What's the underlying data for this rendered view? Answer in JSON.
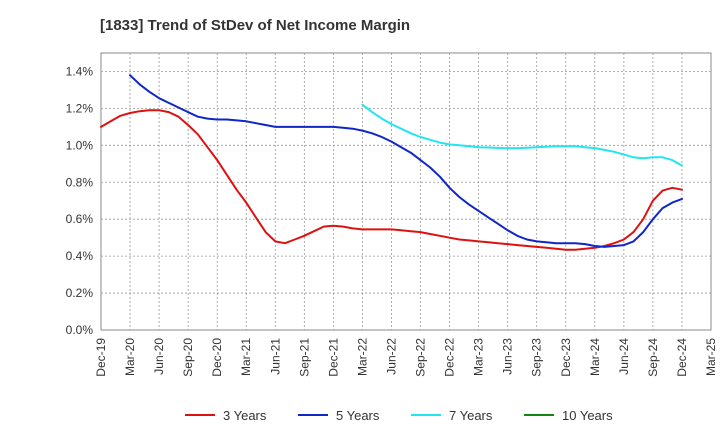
{
  "chart_data": {
    "type": "line",
    "title": "[1833]  Trend of StDev of Net Income Margin",
    "xlabel": "",
    "ylabel": "",
    "x_ticks": [
      "Dec-19",
      "Mar-20",
      "Jun-20",
      "Sep-20",
      "Dec-20",
      "Mar-21",
      "Jun-21",
      "Sep-21",
      "Dec-21",
      "Mar-22",
      "Jun-22",
      "Sep-22",
      "Dec-22",
      "Mar-23",
      "Jun-23",
      "Sep-23",
      "Dec-23",
      "Mar-24",
      "Jun-24",
      "Sep-24",
      "Dec-24",
      "Mar-25"
    ],
    "y_ticks": [
      "0.0%",
      "0.2%",
      "0.4%",
      "0.6%",
      "0.8%",
      "1.0%",
      "1.2%",
      "1.4%"
    ],
    "ylim": [
      0,
      1.5
    ],
    "grid": true,
    "legend_position": "bottom",
    "series": [
      {
        "name": "3 Years",
        "color": "#dd1111",
        "points": [
          [
            "Dec-19",
            1.1
          ],
          [
            "Jan-20",
            1.13
          ],
          [
            "Feb-20",
            1.16
          ],
          [
            "Mar-20",
            1.175
          ],
          [
            "Apr-20",
            1.185
          ],
          [
            "May-20",
            1.19
          ],
          [
            "Jun-20",
            1.19
          ],
          [
            "Jul-20",
            1.18
          ],
          [
            "Aug-20",
            1.155
          ],
          [
            "Sep-20",
            1.11
          ],
          [
            "Oct-20",
            1.06
          ],
          [
            "Nov-20",
            0.99
          ],
          [
            "Dec-20",
            0.92
          ],
          [
            "Jan-21",
            0.84
          ],
          [
            "Feb-21",
            0.76
          ],
          [
            "Mar-21",
            0.69
          ],
          [
            "Apr-21",
            0.61
          ],
          [
            "May-21",
            0.53
          ],
          [
            "Jun-21",
            0.48
          ],
          [
            "Jul-21",
            0.47
          ],
          [
            "Aug-21",
            0.49
          ],
          [
            "Sep-21",
            0.51
          ],
          [
            "Oct-21",
            0.535
          ],
          [
            "Nov-21",
            0.56
          ],
          [
            "Dec-21",
            0.565
          ],
          [
            "Jan-22",
            0.56
          ],
          [
            "Feb-22",
            0.55
          ],
          [
            "Mar-22",
            0.545
          ],
          [
            "Apr-22",
            0.545
          ],
          [
            "May-22",
            0.545
          ],
          [
            "Jun-22",
            0.545
          ],
          [
            "Jul-22",
            0.54
          ],
          [
            "Aug-22",
            0.535
          ],
          [
            "Sep-22",
            0.53
          ],
          [
            "Oct-22",
            0.52
          ],
          [
            "Nov-22",
            0.51
          ],
          [
            "Dec-22",
            0.5
          ],
          [
            "Jan-23",
            0.49
          ],
          [
            "Feb-23",
            0.485
          ],
          [
            "Mar-23",
            0.48
          ],
          [
            "Apr-23",
            0.475
          ],
          [
            "May-23",
            0.47
          ],
          [
            "Jun-23",
            0.465
          ],
          [
            "Jul-23",
            0.46
          ],
          [
            "Aug-23",
            0.455
          ],
          [
            "Sep-23",
            0.45
          ],
          [
            "Oct-23",
            0.445
          ],
          [
            "Nov-23",
            0.44
          ],
          [
            "Dec-23",
            0.435
          ],
          [
            "Jan-24",
            0.435
          ],
          [
            "Feb-24",
            0.44
          ],
          [
            "Mar-24",
            0.445
          ],
          [
            "Apr-24",
            0.455
          ],
          [
            "May-24",
            0.47
          ],
          [
            "Jun-24",
            0.49
          ],
          [
            "Jul-24",
            0.53
          ],
          [
            "Aug-24",
            0.6
          ],
          [
            "Sep-24",
            0.7
          ],
          [
            "Oct-24",
            0.755
          ],
          [
            "Nov-24",
            0.77
          ],
          [
            "Dec-24",
            0.76
          ]
        ]
      },
      {
        "name": "5 Years",
        "color": "#1125c8",
        "points": [
          [
            "Mar-20",
            1.38
          ],
          [
            "Apr-20",
            1.33
          ],
          [
            "May-20",
            1.29
          ],
          [
            "Jun-20",
            1.255
          ],
          [
            "Jul-20",
            1.23
          ],
          [
            "Aug-20",
            1.205
          ],
          [
            "Sep-20",
            1.18
          ],
          [
            "Oct-20",
            1.155
          ],
          [
            "Nov-20",
            1.145
          ],
          [
            "Dec-20",
            1.14
          ],
          [
            "Jan-21",
            1.14
          ],
          [
            "Feb-21",
            1.135
          ],
          [
            "Mar-21",
            1.13
          ],
          [
            "Apr-21",
            1.12
          ],
          [
            "May-21",
            1.11
          ],
          [
            "Jun-21",
            1.1
          ],
          [
            "Jul-21",
            1.1
          ],
          [
            "Aug-21",
            1.1
          ],
          [
            "Sep-21",
            1.1
          ],
          [
            "Oct-21",
            1.1
          ],
          [
            "Nov-21",
            1.1
          ],
          [
            "Dec-21",
            1.1
          ],
          [
            "Jan-22",
            1.095
          ],
          [
            "Feb-22",
            1.09
          ],
          [
            "Mar-22",
            1.08
          ],
          [
            "Apr-22",
            1.065
          ],
          [
            "May-22",
            1.045
          ],
          [
            "Jun-22",
            1.02
          ],
          [
            "Jul-22",
            0.99
          ],
          [
            "Aug-22",
            0.96
          ],
          [
            "Sep-22",
            0.92
          ],
          [
            "Oct-22",
            0.88
          ],
          [
            "Nov-22",
            0.83
          ],
          [
            "Dec-22",
            0.77
          ],
          [
            "Jan-23",
            0.72
          ],
          [
            "Feb-23",
            0.68
          ],
          [
            "Mar-23",
            0.645
          ],
          [
            "Apr-23",
            0.61
          ],
          [
            "May-23",
            0.575
          ],
          [
            "Jun-23",
            0.54
          ],
          [
            "Jul-23",
            0.51
          ],
          [
            "Aug-23",
            0.49
          ],
          [
            "Sep-23",
            0.48
          ],
          [
            "Oct-23",
            0.475
          ],
          [
            "Nov-23",
            0.47
          ],
          [
            "Dec-23",
            0.47
          ],
          [
            "Jan-24",
            0.47
          ],
          [
            "Feb-24",
            0.465
          ],
          [
            "Mar-24",
            0.455
          ],
          [
            "Apr-24",
            0.45
          ],
          [
            "May-24",
            0.455
          ],
          [
            "Jun-24",
            0.46
          ],
          [
            "Jul-24",
            0.48
          ],
          [
            "Aug-24",
            0.53
          ],
          [
            "Sep-24",
            0.6
          ],
          [
            "Oct-24",
            0.66
          ],
          [
            "Nov-24",
            0.69
          ],
          [
            "Dec-24",
            0.71
          ]
        ]
      },
      {
        "name": "7 Years",
        "color": "#22e5f0",
        "points": [
          [
            "Mar-22",
            1.22
          ],
          [
            "Apr-22",
            1.18
          ],
          [
            "May-22",
            1.145
          ],
          [
            "Jun-22",
            1.115
          ],
          [
            "Jul-22",
            1.09
          ],
          [
            "Aug-22",
            1.065
          ],
          [
            "Sep-22",
            1.045
          ],
          [
            "Oct-22",
            1.03
          ],
          [
            "Nov-22",
            1.015
          ],
          [
            "Dec-22",
            1.005
          ],
          [
            "Jan-23",
            1.0
          ],
          [
            "Feb-23",
            0.995
          ],
          [
            "Mar-23",
            0.99
          ],
          [
            "Apr-23",
            0.988
          ],
          [
            "May-23",
            0.986
          ],
          [
            "Jun-23",
            0.985
          ],
          [
            "Jul-23",
            0.985
          ],
          [
            "Aug-23",
            0.987
          ],
          [
            "Sep-23",
            0.99
          ],
          [
            "Oct-23",
            0.992
          ],
          [
            "Nov-23",
            0.995
          ],
          [
            "Dec-23",
            0.995
          ],
          [
            "Jan-24",
            0.995
          ],
          [
            "Feb-24",
            0.99
          ],
          [
            "Mar-24",
            0.985
          ],
          [
            "Apr-24",
            0.975
          ],
          [
            "May-24",
            0.965
          ],
          [
            "Jun-24",
            0.95
          ],
          [
            "Jul-24",
            0.935
          ],
          [
            "Aug-24",
            0.93
          ],
          [
            "Sep-24",
            0.935
          ],
          [
            "Oct-24",
            0.935
          ],
          [
            "Nov-24",
            0.92
          ],
          [
            "Dec-24",
            0.89
          ]
        ]
      },
      {
        "name": "10 Years",
        "color": "#118811",
        "points": []
      }
    ]
  }
}
